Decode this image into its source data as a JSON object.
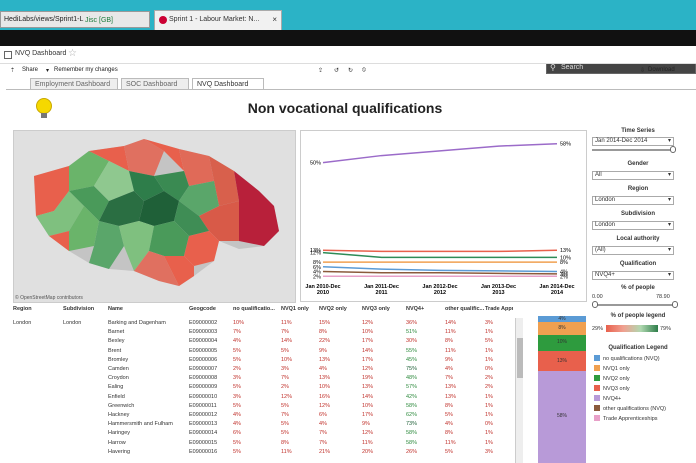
{
  "browser": {
    "url": "HediLabs/views/Sprint1-L",
    "security": "Jisc [GB]",
    "tab_title": "Sprint 1 - Labour Market: N...",
    "tab_close": "×",
    "search_placeholder": "Search"
  },
  "workbook": {
    "title": "NVQ Dashboard",
    "share": "Share",
    "remember": "Remember my changes",
    "download": "Download"
  },
  "tabs": [
    "Employment Dashboard",
    "SOC Dashboard",
    "NVQ Dashboard"
  ],
  "page_title": "Non vocational qualifications",
  "map": {
    "credit": "© OpenStreetMap contributors"
  },
  "chart_data": {
    "type": "line",
    "categories": [
      "Jan 2010-Dec 2010",
      "Jan 2011-Dec 2011",
      "Jan 2012-Dec 2012",
      "Jan 2013-Dec 2013",
      "Jan 2014-Dec 2014"
    ],
    "category_lines": [
      [
        "Jan 2010-Dec",
        "2010"
      ],
      [
        "Jan 2011-Dec",
        "2011"
      ],
      [
        "Jan 2012-Dec",
        "2012"
      ],
      [
        "Jan 2013-Dec",
        "2013"
      ],
      [
        "Jan 2014-Dec",
        "2014"
      ]
    ],
    "ylim": [
      0,
      60
    ],
    "series": [
      {
        "color": "#9b6bc9",
        "values": [
          50,
          53,
          55,
          57,
          58
        ],
        "start_label": "50%",
        "end_label": "58%"
      },
      {
        "color": "#e8604c",
        "values": [
          13,
          12.5,
          12.5,
          12.5,
          13
        ],
        "start_label": "13%",
        "end_label": "13%"
      },
      {
        "color": "#2e8b57",
        "values": [
          12,
          10,
          10,
          10,
          10
        ],
        "start_label": "12%",
        "end_label": "10%"
      },
      {
        "color": "#f0a050",
        "values": [
          8,
          8,
          8,
          8,
          8
        ],
        "start_label": "8%",
        "end_label": "8%"
      },
      {
        "color": "#5b9bd5",
        "values": [
          6,
          5,
          4.5,
          4.3,
          4
        ],
        "start_label": "6%",
        "end_label": "4%"
      },
      {
        "color": "#8b5a3c",
        "values": [
          4,
          3.5,
          3.5,
          3.2,
          3
        ],
        "start_label": "4%",
        "end_label": "3%"
      },
      {
        "color": "#e8a0c8",
        "values": [
          2,
          2,
          2,
          2,
          2
        ],
        "start_label": "2%",
        "end_label": "2%"
      }
    ]
  },
  "filters": {
    "time_series_label": "Time Series",
    "time_series_value": "Jan 2014-Dec 2014",
    "gender_label": "Gender",
    "gender_value": "All",
    "region_label": "Region",
    "region_value": "London",
    "subdivision_label": "Subdivision",
    "subdivision_value": "London",
    "local_authority_label": "Local authority",
    "local_authority_value": "(All)",
    "qualification_label": "Qualification",
    "qualification_value": "NVQ4+",
    "people_label": "% of people",
    "people_min": "0.00",
    "people_max": "78.90",
    "people_legend_label": "% of people legend",
    "people_legend_min": "29%",
    "people_legend_max": "79%"
  },
  "table": {
    "headers": [
      "Region",
      "Subdivision",
      "Name",
      "Geogcode",
      "no qualificatio...",
      "NVQ1 only",
      "NVQ2 only",
      "NVQ3 only",
      "NVQ4+",
      "other qualific...",
      "Trade Appre..."
    ],
    "region": "London",
    "subdivision": "London",
    "rows": [
      [
        "Barking and Dagenham",
        "E09000002",
        "10%",
        "11%",
        "15%",
        "12%",
        "36%",
        "14%",
        "3%"
      ],
      [
        "Barnet",
        "E09000003",
        "7%",
        "7%",
        "8%",
        "10%",
        "51%",
        "11%",
        "1%"
      ],
      [
        "Bexley",
        "E09000004",
        "4%",
        "14%",
        "22%",
        "17%",
        "30%",
        "8%",
        "5%"
      ],
      [
        "Brent",
        "E09000005",
        "5%",
        "5%",
        "9%",
        "14%",
        "55%",
        "11%",
        "1%"
      ],
      [
        "Bromley",
        "E09000006",
        "5%",
        "10%",
        "13%",
        "17%",
        "45%",
        "9%",
        "1%"
      ],
      [
        "Camden",
        "E09000007",
        "2%",
        "3%",
        "4%",
        "12%",
        "75%",
        "4%",
        "0%"
      ],
      [
        "Croydon",
        "E09000008",
        "3%",
        "7%",
        "13%",
        "19%",
        "48%",
        "7%",
        "2%"
      ],
      [
        "Ealing",
        "E09000009",
        "5%",
        "2%",
        "10%",
        "13%",
        "57%",
        "13%",
        "2%"
      ],
      [
        "Enfield",
        "E09000010",
        "3%",
        "12%",
        "16%",
        "14%",
        "42%",
        "13%",
        "1%"
      ],
      [
        "Greenwich",
        "E09000011",
        "5%",
        "5%",
        "12%",
        "10%",
        "58%",
        "8%",
        "1%"
      ],
      [
        "Hackney",
        "E09000012",
        "4%",
        "7%",
        "6%",
        "17%",
        "62%",
        "5%",
        "1%"
      ],
      [
        "Hammersmith and Fulham",
        "E09000013",
        "4%",
        "5%",
        "4%",
        "9%",
        "73%",
        "4%",
        "0%"
      ],
      [
        "Haringey",
        "E09000014",
        "6%",
        "5%",
        "7%",
        "12%",
        "58%",
        "8%",
        "1%"
      ],
      [
        "Harrow",
        "E09000015",
        "5%",
        "8%",
        "7%",
        "11%",
        "58%",
        "11%",
        "1%"
      ],
      [
        "Havering",
        "E09000016",
        "5%",
        "11%",
        "21%",
        "20%",
        "26%",
        "5%",
        "3%"
      ]
    ]
  },
  "stack_bar": {
    "segments": [
      {
        "label": "4%",
        "color": "#5b9bd5",
        "value": 4
      },
      {
        "label": "8%",
        "color": "#f0a050",
        "value": 8
      },
      {
        "label": "10%",
        "color": "#2e9b3e",
        "value": 10
      },
      {
        "label": "13%",
        "color": "#e8604c",
        "value": 13
      },
      {
        "label": "58%",
        "color": "#b89ad8",
        "value": 58
      }
    ]
  },
  "legend": {
    "title": "Qualification Legend",
    "items": [
      {
        "label": "no qualifications (NVQ)",
        "color": "#5b9bd5"
      },
      {
        "label": "NVQ1 only",
        "color": "#f0a050"
      },
      {
        "label": "NVQ2 only",
        "color": "#2e9b3e"
      },
      {
        "label": "NVQ3 only",
        "color": "#e8604c"
      },
      {
        "label": "NVQ4+",
        "color": "#b89ad8"
      },
      {
        "label": "other qualifications (NVQ)",
        "color": "#8b5a3c"
      },
      {
        "label": "Trade Apprenticeships",
        "color": "#e8a0c8"
      }
    ]
  }
}
